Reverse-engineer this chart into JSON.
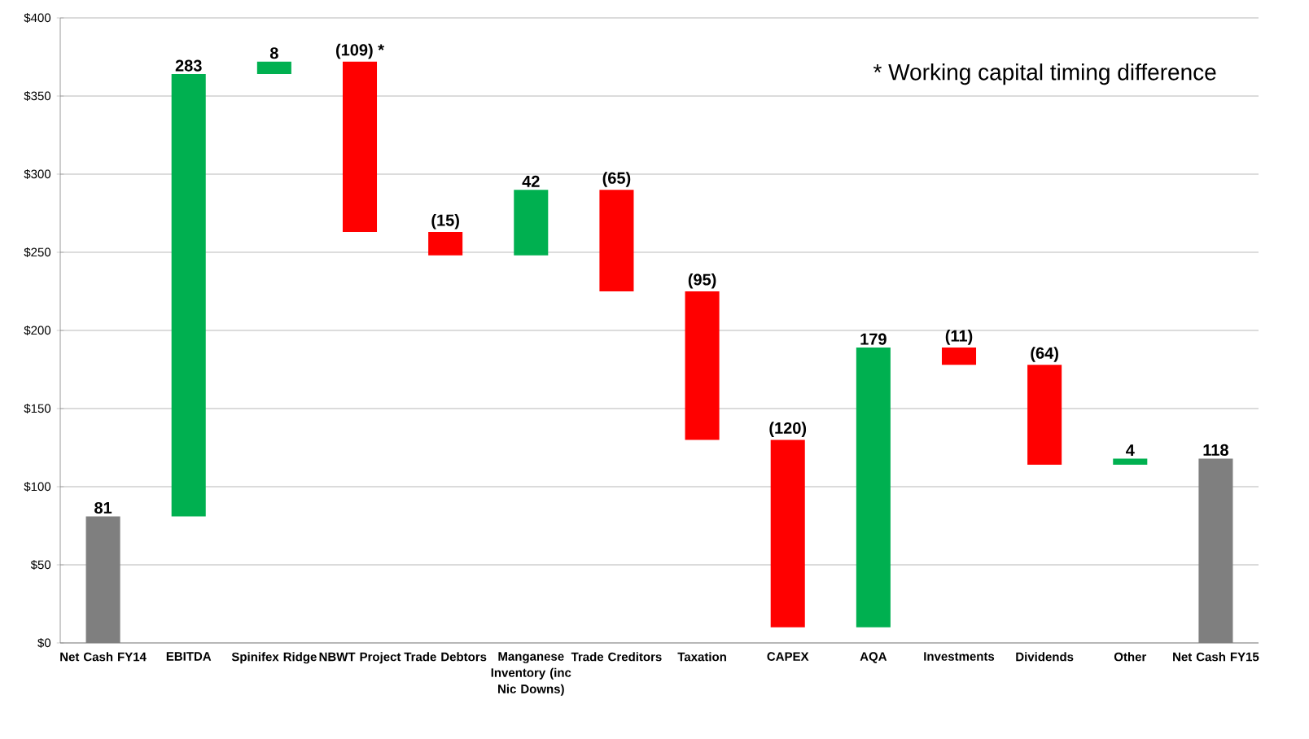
{
  "chart_data": {
    "type": "bar",
    "categories": [
      "Net Cash FY14",
      "EBITDA",
      "Spinifex Ridge",
      "NBWT Project",
      "Trade Debtors",
      "Manganese Inventory (inc Nic Downs)",
      "Trade Creditors",
      "Taxation",
      "CAPEX",
      "AQA",
      "Investments",
      "Dividends",
      "Other",
      "Net Cash FY15"
    ],
    "values": [
      81,
      283,
      8,
      -109,
      -15,
      42,
      -65,
      -95,
      -120,
      179,
      -11,
      -64,
      4,
      118
    ],
    "base": [
      0,
      81,
      364,
      372,
      263,
      248,
      290,
      225,
      130,
      10,
      189,
      178,
      114,
      0
    ],
    "colors": [
      "#7f7f7f",
      "#00b050",
      "#00b050",
      "#ff0000",
      "#ff0000",
      "#00b050",
      "#ff0000",
      "#ff0000",
      "#ff0000",
      "#00b050",
      "#ff0000",
      "#ff0000",
      "#00b050",
      "#7f7f7f"
    ],
    "value_labels": [
      "81",
      "283",
      "8",
      "(109) *",
      "(15)",
      "42",
      "(65)",
      "(95)",
      "(120)",
      "179",
      "(11)",
      "(64)",
      "4",
      "118"
    ],
    "ylim": [
      0,
      400
    ],
    "yticks": [
      {
        "value": 0,
        "label": "$0"
      },
      {
        "value": 50,
        "label": "$50"
      },
      {
        "value": 100,
        "label": "$100"
      },
      {
        "value": 150,
        "label": "$150"
      },
      {
        "value": 200,
        "label": "$200"
      },
      {
        "value": 250,
        "label": "$250"
      },
      {
        "value": 300,
        "label": "$300"
      },
      {
        "value": 350,
        "label": "$350"
      },
      {
        "value": 400,
        "label": "$400"
      }
    ],
    "grid": "y",
    "annotations": [
      "* Working capital timing difference"
    ]
  }
}
